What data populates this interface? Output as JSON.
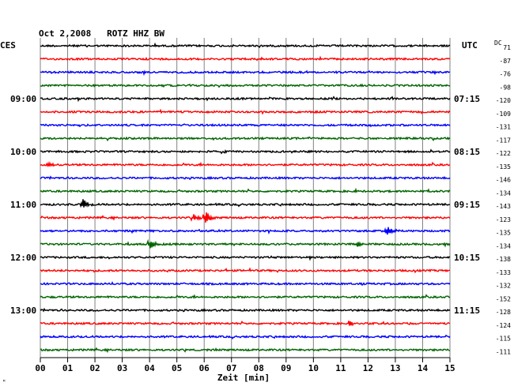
{
  "header": {
    "title": "Oct 2,2008   ROTZ HHZ BW",
    "left_tz": "CES",
    "right_tz": "UTC",
    "dc_label": "DC",
    "footnote_mark": "ᴹ"
  },
  "chart_data": {
    "type": "line",
    "title": "Oct 2,2008   ROTZ HHZ BW",
    "xlabel": "Zeit [min]",
    "x_range": [
      0,
      15
    ],
    "x_ticks": [
      "00",
      "01",
      "02",
      "03",
      "04",
      "05",
      "06",
      "07",
      "08",
      "09",
      "10",
      "11",
      "12",
      "13",
      "14",
      "15"
    ],
    "trace_colors": [
      "#000000",
      "#ff0000",
      "#0000ff",
      "#006400"
    ],
    "left_hour_labels": [
      {
        "row": 4,
        "text": "09:00"
      },
      {
        "row": 8,
        "text": "10:00"
      },
      {
        "row": 12,
        "text": "11:00"
      },
      {
        "row": 16,
        "text": "12:00"
      },
      {
        "row": 20,
        "text": "13:00"
      }
    ],
    "right_hour_labels": [
      {
        "row": 4,
        "text": "07:15"
      },
      {
        "row": 8,
        "text": "08:15"
      },
      {
        "row": 12,
        "text": "09:15"
      },
      {
        "row": 16,
        "text": "10:15"
      },
      {
        "row": 20,
        "text": "11:15"
      }
    ],
    "dc_offsets": [
      "71",
      "-87",
      "-76",
      "-98",
      "-120",
      "-109",
      "-131",
      "-117",
      "-122",
      "-135",
      "-146",
      "-134",
      "-143",
      "-123",
      "-135",
      "-134",
      "-138",
      "-133",
      "-132",
      "-152",
      "-128",
      "-124",
      "-115",
      "-111"
    ],
    "events": [
      {
        "row": 9,
        "minute": 0.3,
        "amp": 4
      },
      {
        "row": 12,
        "minute": 1.55,
        "amp": 7
      },
      {
        "row": 13,
        "minute": 6.05,
        "amp": 9
      },
      {
        "row": 13,
        "minute": 5.6,
        "amp": 4
      },
      {
        "row": 14,
        "minute": 12.7,
        "amp": 6
      },
      {
        "row": 15,
        "minute": 4.0,
        "amp": 7
      },
      {
        "row": 15,
        "minute": 11.6,
        "amp": 4
      },
      {
        "row": 21,
        "minute": 11.3,
        "amp": 3
      }
    ]
  }
}
